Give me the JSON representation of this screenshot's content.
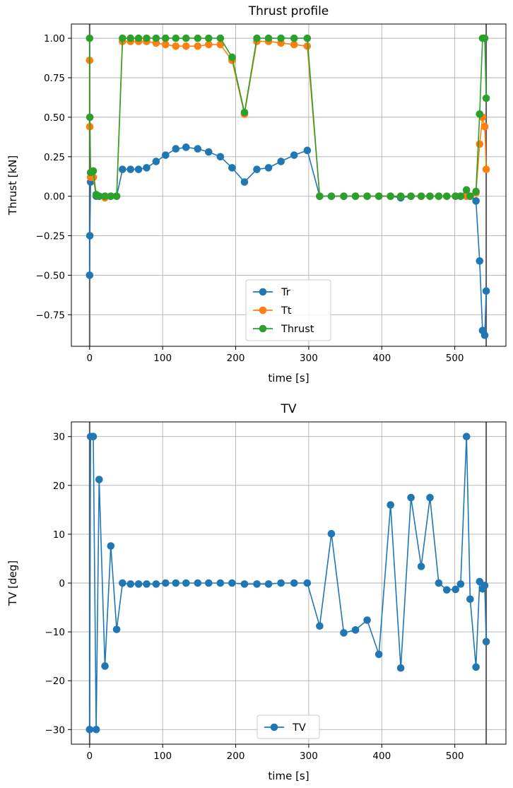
{
  "chart_data": [
    {
      "type": "line",
      "title": "Thrust profile",
      "xlabel": "time [s]",
      "ylabel": "Thrust [kN]",
      "xlim": [
        -25,
        570
      ],
      "ylim": [
        -0.95,
        1.09
      ],
      "xticks": [
        0,
        100,
        200,
        300,
        400,
        500
      ],
      "xtick_labels": [
        "0",
        "100",
        "200",
        "300",
        "400",
        "500"
      ],
      "yticks": [
        -0.75,
        -0.5,
        -0.25,
        0.0,
        0.25,
        0.5,
        0.75,
        1.0
      ],
      "ytick_labels": [
        "−0.75",
        "−0.50",
        "−0.25",
        "0.00",
        "0.25",
        "0.50",
        "0.75",
        "1.00"
      ],
      "vlines": [
        0,
        543
      ],
      "grid": true,
      "legend_position": "lower-center",
      "series": [
        {
          "name": "Tr",
          "color": "#1f77b4",
          "x": [
            0,
            0.3,
            1.3,
            5,
            9,
            13,
            21,
            29,
            37,
            45,
            56,
            67,
            78,
            91,
            104,
            118,
            132,
            148,
            163,
            179,
            195,
            212,
            229,
            245,
            262,
            280,
            298,
            315,
            331,
            348,
            364,
            380,
            396,
            412,
            426,
            440,
            454,
            466,
            478,
            489,
            501,
            508,
            516,
            521,
            529,
            534,
            538,
            541,
            543
          ],
          "y": [
            -0.5,
            -0.25,
            0.09,
            0.12,
            0.0,
            0.0,
            0.0,
            0.0,
            0.0,
            0.17,
            0.17,
            0.17,
            0.18,
            0.22,
            0.26,
            0.3,
            0.31,
            0.3,
            0.28,
            0.25,
            0.18,
            0.09,
            0.17,
            0.18,
            0.22,
            0.26,
            0.29,
            0.0,
            0.0,
            0.0,
            0.0,
            0.0,
            0.0,
            0.0,
            -0.01,
            0.0,
            0.0,
            0.0,
            0.0,
            0.0,
            0.0,
            0.0,
            0.0,
            0.0,
            -0.03,
            -0.41,
            -0.85,
            -0.88,
            -0.6
          ]
        },
        {
          "name": "Tt",
          "color": "#ff7f0e",
          "x": [
            0,
            0.3,
            1.3,
            5,
            9,
            13,
            21,
            29,
            37,
            45,
            56,
            67,
            78,
            91,
            104,
            118,
            132,
            148,
            163,
            179,
            195,
            212,
            229,
            245,
            262,
            280,
            298,
            315,
            331,
            348,
            364,
            380,
            396,
            412,
            426,
            440,
            454,
            466,
            478,
            489,
            501,
            508,
            516,
            521,
            529,
            534,
            538,
            541,
            543
          ],
          "y": [
            0.86,
            0.44,
            0.12,
            0.12,
            0.01,
            0.0,
            -0.01,
            0.0,
            0.0,
            0.98,
            0.98,
            0.98,
            0.98,
            0.97,
            0.96,
            0.95,
            0.95,
            0.95,
            0.96,
            0.96,
            0.86,
            0.52,
            0.98,
            0.98,
            0.97,
            0.96,
            0.95,
            0.0,
            0.0,
            0.0,
            0.0,
            0.0,
            0.0,
            0.0,
            0.0,
            0.0,
            0.0,
            0.0,
            0.0,
            0.0,
            0.0,
            0.0,
            0.0,
            0.0,
            0.02,
            0.33,
            0.5,
            0.44,
            0.17
          ]
        },
        {
          "name": "Thrust",
          "color": "#2ca02c",
          "x": [
            0,
            0.3,
            1.3,
            5,
            9,
            13,
            21,
            29,
            37,
            45,
            56,
            67,
            78,
            91,
            104,
            118,
            132,
            148,
            163,
            179,
            195,
            212,
            229,
            245,
            262,
            280,
            298,
            315,
            331,
            348,
            364,
            380,
            396,
            412,
            426,
            440,
            454,
            466,
            478,
            489,
            501,
            508,
            516,
            521,
            529,
            534,
            538,
            541,
            543
          ],
          "y": [
            1.0,
            0.5,
            0.15,
            0.16,
            0.01,
            0.0,
            0.0,
            0.0,
            0.0,
            1.0,
            1.0,
            1.0,
            1.0,
            1.0,
            1.0,
            1.0,
            1.0,
            1.0,
            1.0,
            1.0,
            0.88,
            0.53,
            1.0,
            1.0,
            1.0,
            1.0,
            1.0,
            0.0,
            0.0,
            0.0,
            0.0,
            0.0,
            0.0,
            0.0,
            0.0,
            0.0,
            0.0,
            0.0,
            0.0,
            0.0,
            0.0,
            0.0,
            0.04,
            0.0,
            0.03,
            0.52,
            1.0,
            1.0,
            0.62
          ]
        }
      ]
    },
    {
      "type": "line",
      "title": "TV",
      "xlabel": "time [s]",
      "ylabel": "TV [deg]",
      "xlim": [
        -25,
        570
      ],
      "ylim": [
        -33,
        33
      ],
      "xticks": [
        0,
        100,
        200,
        300,
        400,
        500
      ],
      "xtick_labels": [
        "0",
        "100",
        "200",
        "300",
        "400",
        "500"
      ],
      "yticks": [
        -30,
        -20,
        -10,
        0,
        10,
        20,
        30
      ],
      "ytick_labels": [
        "−30",
        "−20",
        "−10",
        "0",
        "10",
        "20",
        "30"
      ],
      "vlines": [
        0,
        543
      ],
      "grid": true,
      "legend_position": "lower-center",
      "series": [
        {
          "name": "TV",
          "color": "#1f77b4",
          "x": [
            0,
            1.3,
            5,
            9,
            13,
            21,
            29,
            37,
            45,
            56,
            67,
            78,
            91,
            104,
            118,
            132,
            148,
            163,
            179,
            195,
            212,
            229,
            245,
            262,
            280,
            298,
            315,
            331,
            348,
            364,
            380,
            396,
            412,
            426,
            440,
            454,
            466,
            478,
            489,
            501,
            508,
            516,
            521,
            529,
            534,
            538,
            541,
            543
          ],
          "y": [
            -30,
            30,
            30,
            -30,
            21.2,
            -17,
            7.6,
            -9.5,
            0,
            -0.2,
            -0.2,
            -0.2,
            -0.2,
            0,
            0,
            0,
            0,
            0,
            0,
            0,
            -0.2,
            -0.2,
            -0.2,
            0,
            0,
            0,
            -8.8,
            10.1,
            -10.2,
            -9.6,
            -7.6,
            -14.6,
            16,
            -17.4,
            17.5,
            3.4,
            17.5,
            0,
            -1.4,
            -1.3,
            -0.2,
            30,
            -3.3,
            -17.2,
            0.3,
            -1.2,
            -0.5,
            -12
          ]
        }
      ]
    }
  ]
}
